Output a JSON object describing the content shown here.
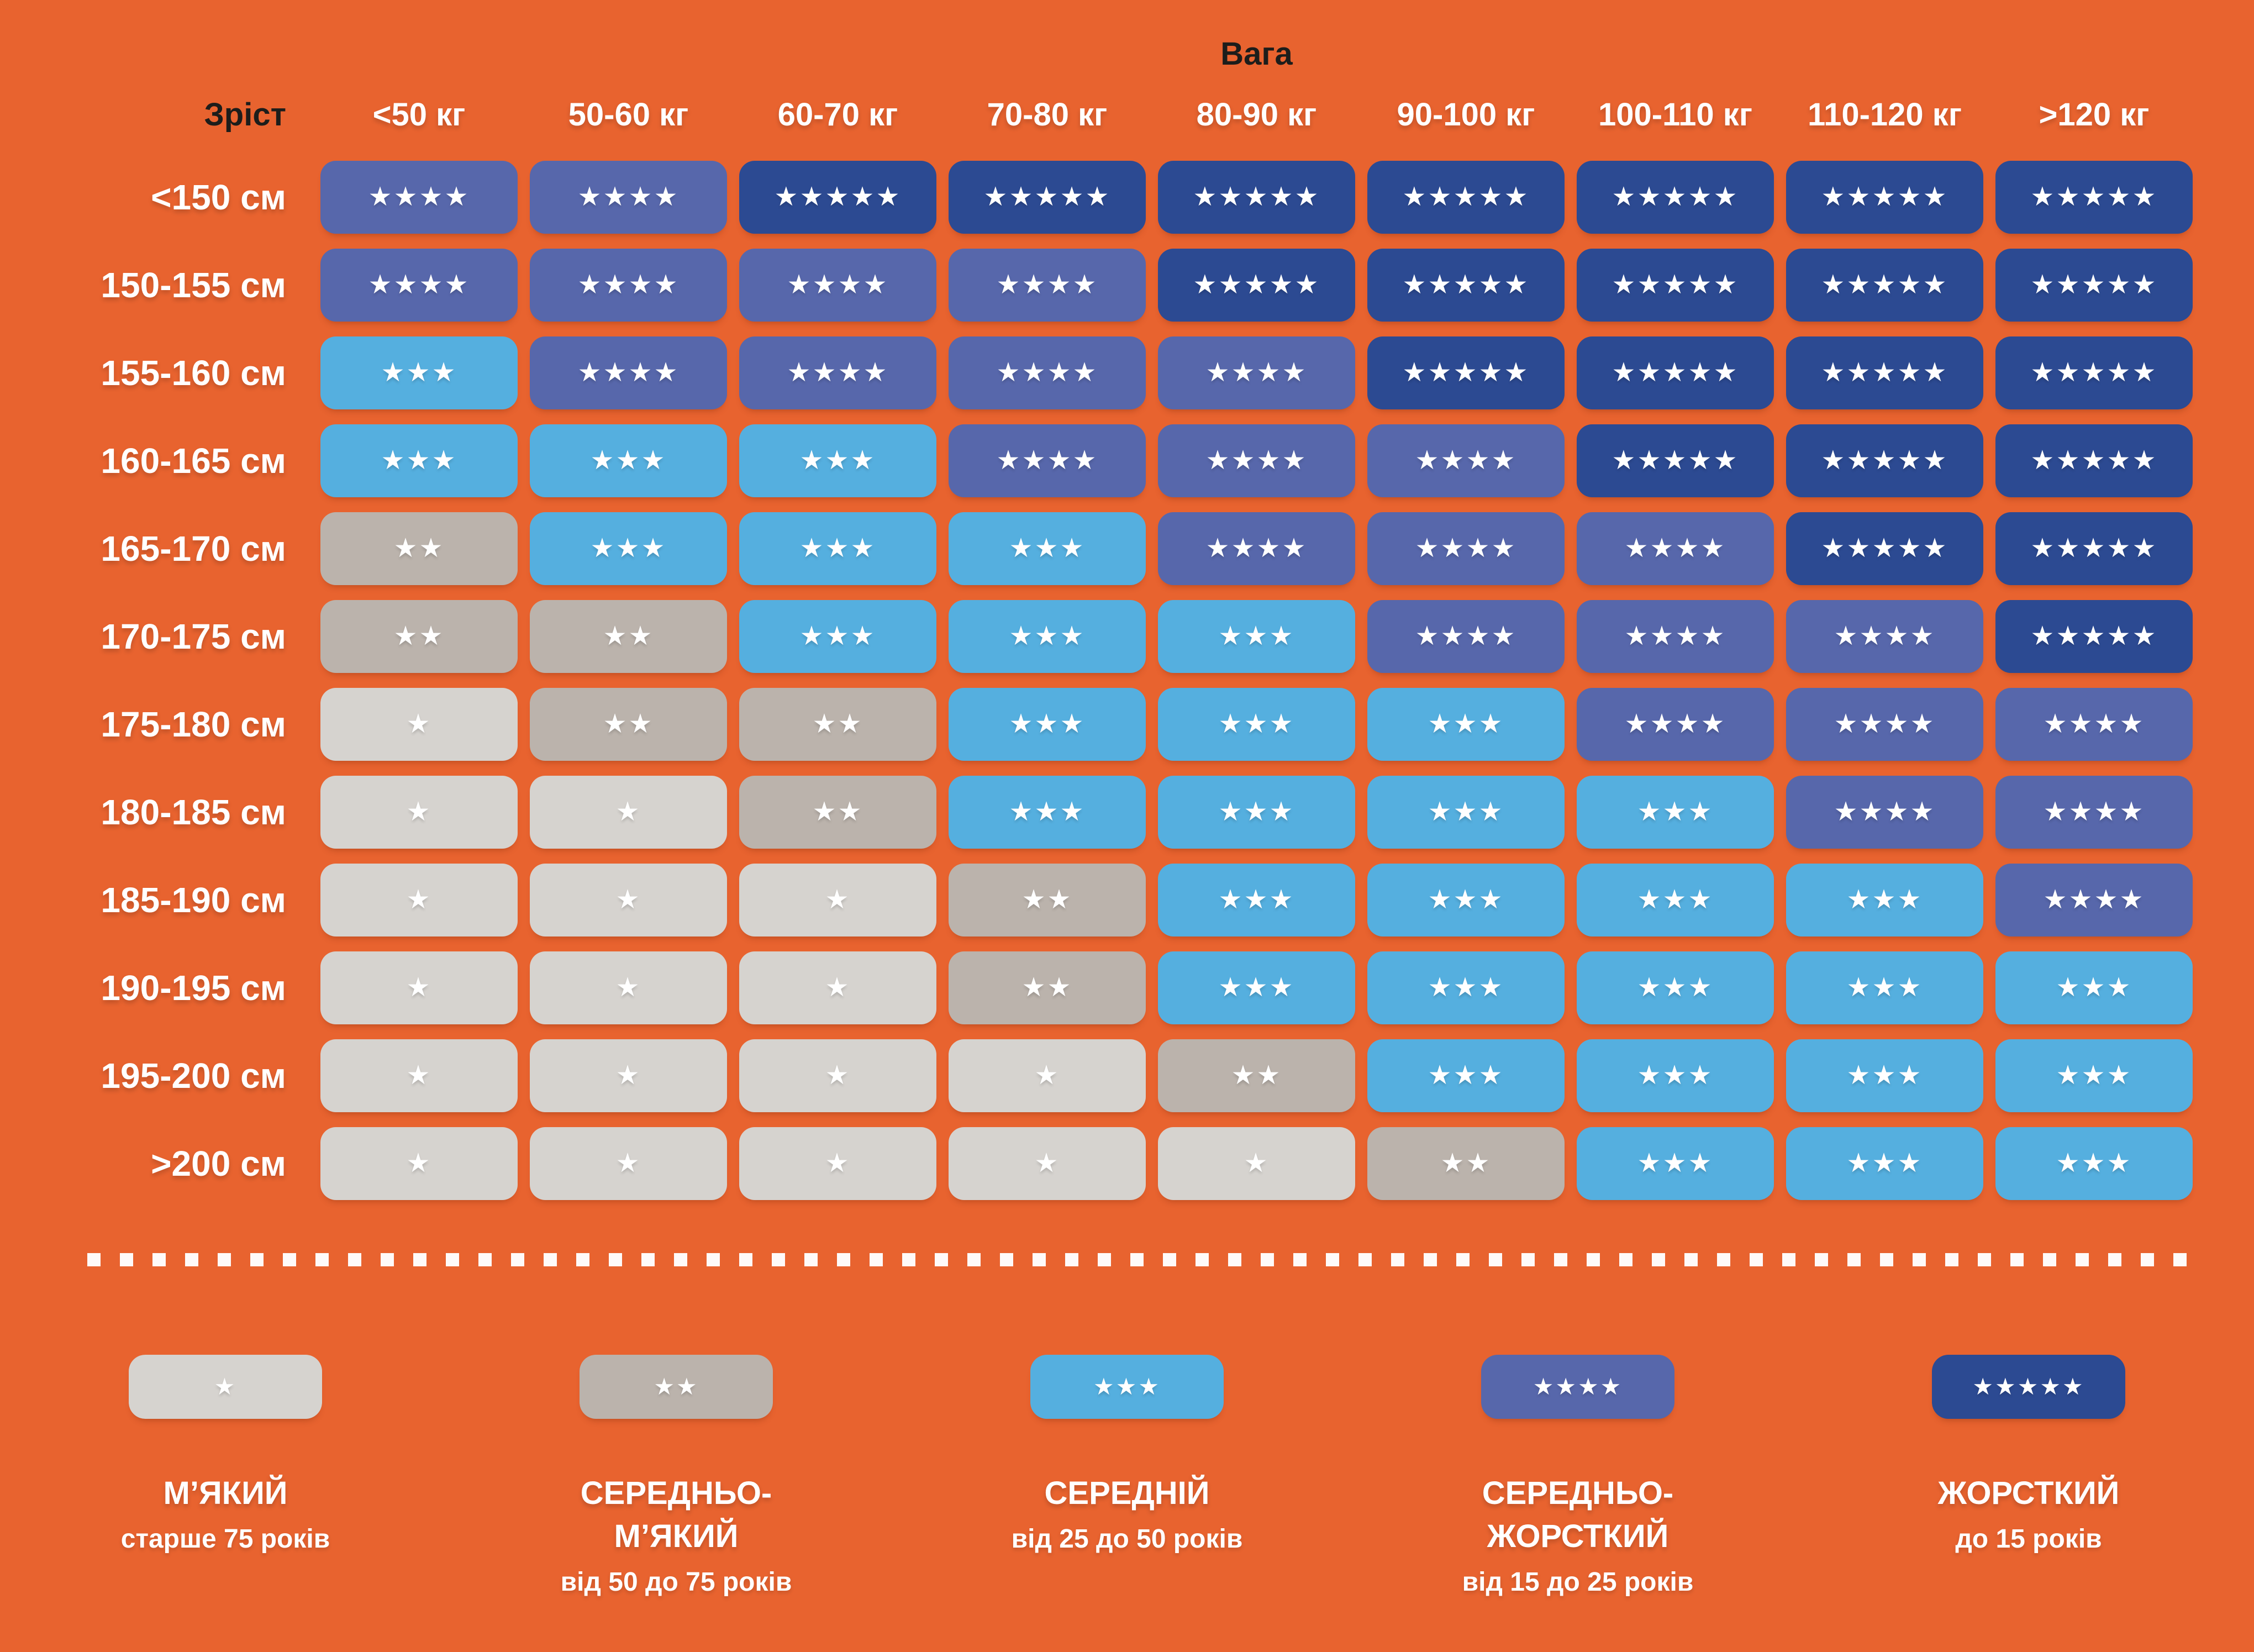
{
  "axis": {
    "weight": "Вага",
    "height": "Зріст"
  },
  "columns": [
    "<50 кг",
    "50-60 кг",
    "60-70 кг",
    "70-80 кг",
    "80-90 кг",
    "90-100 кг",
    "100-110 кг",
    "110-120 кг",
    ">120 кг"
  ],
  "rows": [
    {
      "label": "<150 см",
      "stars": [
        4,
        4,
        5,
        5,
        5,
        5,
        5,
        5,
        5
      ]
    },
    {
      "label": "150-155 см",
      "stars": [
        4,
        4,
        4,
        4,
        5,
        5,
        5,
        5,
        5
      ]
    },
    {
      "label": "155-160 см",
      "stars": [
        3,
        4,
        4,
        4,
        4,
        5,
        5,
        5,
        5
      ]
    },
    {
      "label": "160-165 см",
      "stars": [
        3,
        3,
        3,
        4,
        4,
        4,
        5,
        5,
        5
      ]
    },
    {
      "label": "165-170 см",
      "stars": [
        2,
        3,
        3,
        3,
        4,
        4,
        4,
        5,
        5
      ]
    },
    {
      "label": "170-175 см",
      "stars": [
        2,
        2,
        3,
        3,
        3,
        4,
        4,
        4,
        5
      ]
    },
    {
      "label": "175-180 см",
      "stars": [
        1,
        2,
        2,
        3,
        3,
        3,
        4,
        4,
        4
      ]
    },
    {
      "label": "180-185 см",
      "stars": [
        1,
        1,
        2,
        3,
        3,
        3,
        3,
        4,
        4
      ]
    },
    {
      "label": "185-190 см",
      "stars": [
        1,
        1,
        1,
        2,
        3,
        3,
        3,
        3,
        4
      ]
    },
    {
      "label": "190-195 см",
      "stars": [
        1,
        1,
        1,
        2,
        3,
        3,
        3,
        3,
        3
      ]
    },
    {
      "label": "195-200 см",
      "stars": [
        1,
        1,
        1,
        1,
        2,
        3,
        3,
        3,
        3
      ]
    },
    {
      "label": ">200 см",
      "stars": [
        1,
        1,
        1,
        1,
        1,
        2,
        3,
        3,
        3
      ]
    }
  ],
  "legend": [
    {
      "stars": 1,
      "title_lines": [
        "М’ЯКИЙ"
      ],
      "subtitle": "старше 75 років"
    },
    {
      "stars": 2,
      "title_lines": [
        "СЕРЕДНЬО-",
        "М’ЯКИЙ"
      ],
      "subtitle": "від 50 до 75 років"
    },
    {
      "stars": 3,
      "title_lines": [
        "СЕРЕДНІЙ"
      ],
      "subtitle": "від 25 до 50 років"
    },
    {
      "stars": 4,
      "title_lines": [
        "СЕРЕДНЬО-",
        "ЖОРСТКИЙ"
      ],
      "subtitle": "від 15 до 25 років"
    },
    {
      "stars": 5,
      "title_lines": [
        "ЖОРСТКИЙ"
      ],
      "subtitle": "до 15 років"
    }
  ],
  "star_glyph": "★",
  "colors": {
    "background": "#E8632F",
    "star": "#FFFFFF",
    "text_light": "#FFFFFF",
    "text_dark": "#1D1D1B",
    "levels": {
      "1": "#D6D3CF",
      "2": "#BBB3AC",
      "3": "#55AFDF",
      "4": "#5767AB",
      "5": "#2C4A92"
    }
  },
  "chart_data": {
    "type": "heatmap",
    "title": "Вага",
    "xlabel": "Вага",
    "ylabel": "Зріст",
    "x_categories": [
      "<50 кг",
      "50-60 кг",
      "60-70 кг",
      "70-80 кг",
      "80-90 кг",
      "90-100 кг",
      "100-110 кг",
      "110-120 кг",
      ">120 кг"
    ],
    "y_categories": [
      "<150 см",
      "150-155 см",
      "155-160 см",
      "160-165 см",
      "165-170 см",
      "170-175 см",
      "175-180 см",
      "180-185 см",
      "185-190 см",
      "190-195 см",
      "195-200 см",
      ">200 см"
    ],
    "values": [
      [
        4,
        4,
        5,
        5,
        5,
        5,
        5,
        5,
        5
      ],
      [
        4,
        4,
        4,
        4,
        5,
        5,
        5,
        5,
        5
      ],
      [
        3,
        4,
        4,
        4,
        4,
        5,
        5,
        5,
        5
      ],
      [
        3,
        3,
        3,
        4,
        4,
        4,
        5,
        5,
        5
      ],
      [
        2,
        3,
        3,
        3,
        4,
        4,
        4,
        5,
        5
      ],
      [
        2,
        2,
        3,
        3,
        3,
        4,
        4,
        4,
        5
      ],
      [
        1,
        2,
        2,
        3,
        3,
        3,
        4,
        4,
        4
      ],
      [
        1,
        1,
        2,
        3,
        3,
        3,
        3,
        4,
        4
      ],
      [
        1,
        1,
        1,
        2,
        3,
        3,
        3,
        3,
        4
      ],
      [
        1,
        1,
        1,
        2,
        3,
        3,
        3,
        3,
        3
      ],
      [
        1,
        1,
        1,
        1,
        2,
        3,
        3,
        3,
        3
      ],
      [
        1,
        1,
        1,
        1,
        1,
        2,
        3,
        3,
        3
      ]
    ],
    "value_range": [
      1,
      5
    ],
    "value_meaning": "mattress firmness in stars: 1=М’ЯКИЙ (старше 75 років), 2=СЕРЕДНЬО-М’ЯКИЙ (від 50 до 75 років), 3=СЕРЕДНІЙ (від 25 до 50 років), 4=СЕРЕДНЬО-ЖОРСТКИЙ (від 15 до 25 років), 5=ЖОРСТКИЙ (до 15 років)",
    "legend_position": "bottom",
    "grid": false
  }
}
